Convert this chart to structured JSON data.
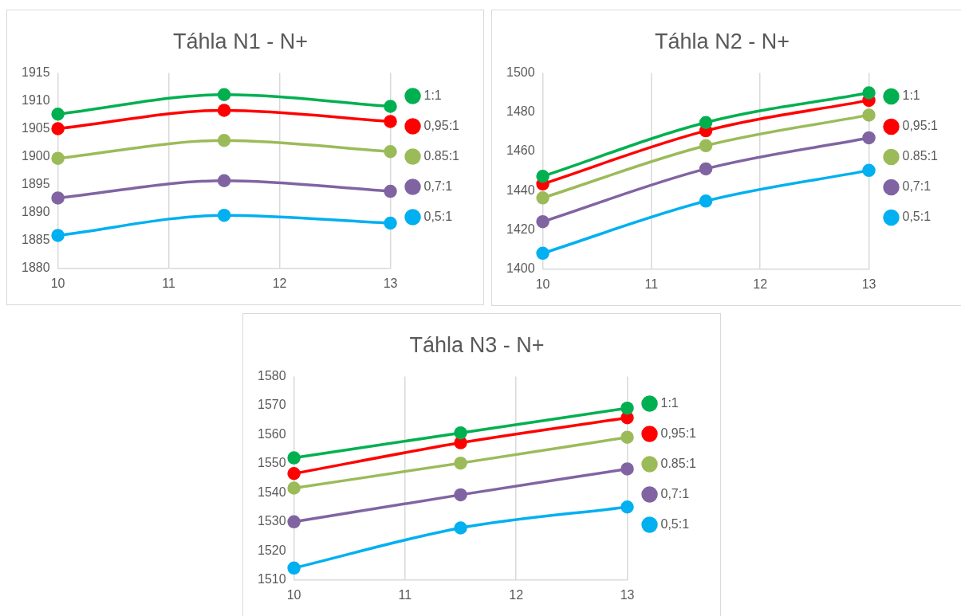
{
  "chart_data": [
    {
      "type": "line",
      "title": "Táhla N1 - N+",
      "x": [
        10,
        11.5,
        13
      ],
      "xlim": [
        10,
        13
      ],
      "xticks": [
        10,
        11,
        12,
        13
      ],
      "ylim": [
        1880,
        1915
      ],
      "yticks": [
        1880,
        1885,
        1890,
        1895,
        1900,
        1905,
        1910,
        1915
      ],
      "grid": "x",
      "legend": "right",
      "marker": "circle",
      "line_style": "solid",
      "series": [
        {
          "name": "1:1",
          "color": "#00b050",
          "values": [
            1907.6,
            1911.1,
            1909.0
          ]
        },
        {
          "name": "0,95:1",
          "color": "#ff0000",
          "values": [
            1905.0,
            1908.3,
            1906.3
          ]
        },
        {
          "name": "0.85:1",
          "color": "#9bbb59",
          "values": [
            1899.7,
            1902.9,
            1900.9
          ]
        },
        {
          "name": "0,7:1",
          "color": "#8064a2",
          "values": [
            1892.6,
            1895.7,
            1893.8
          ]
        },
        {
          "name": "0,5:1",
          "color": "#00b0f0",
          "values": [
            1885.9,
            1889.5,
            1888.1
          ]
        }
      ]
    },
    {
      "type": "line",
      "title": "Táhla N2 - N+",
      "x": [
        10,
        11.5,
        13
      ],
      "xlim": [
        10,
        13
      ],
      "xticks": [
        10,
        11,
        12,
        13
      ],
      "ylim": [
        1400,
        1500
      ],
      "yticks": [
        1400,
        1420,
        1440,
        1460,
        1480,
        1500
      ],
      "grid": "x",
      "legend": "right",
      "marker": "circle",
      "line_style": "solid",
      "series": [
        {
          "name": "1:1",
          "color": "#00b050",
          "values": [
            1447.3,
            1474.7,
            1489.8
          ]
        },
        {
          "name": "0,95:1",
          "color": "#ff0000",
          "values": [
            1443.4,
            1470.5,
            1486.0
          ]
        },
        {
          "name": "0.85:1",
          "color": "#9bbb59",
          "values": [
            1436.3,
            1462.9,
            1478.5
          ]
        },
        {
          "name": "0,7:1",
          "color": "#8064a2",
          "values": [
            1424.2,
            1451.1,
            1466.9
          ]
        },
        {
          "name": "0,5:1",
          "color": "#00b0f0",
          "values": [
            1408.1,
            1434.7,
            1450.3
          ]
        }
      ]
    },
    {
      "type": "line",
      "title": "Táhla N3 - N+",
      "x": [
        10,
        11.5,
        13
      ],
      "xlim": [
        10,
        13
      ],
      "xticks": [
        10,
        11,
        12,
        13
      ],
      "ylim": [
        1510,
        1580
      ],
      "yticks": [
        1510,
        1520,
        1530,
        1540,
        1550,
        1560,
        1570,
        1580
      ],
      "grid": "x",
      "legend": "right",
      "marker": "circle",
      "line_style": "solid",
      "series": [
        {
          "name": "1:1",
          "color": "#00b050",
          "values": [
            1552.0,
            1560.6,
            1569.1
          ]
        },
        {
          "name": "0,95:1",
          "color": "#ff0000",
          "values": [
            1546.6,
            1557.2,
            1565.8
          ]
        },
        {
          "name": "0.85:1",
          "color": "#9bbb59",
          "values": [
            1541.6,
            1550.2,
            1559.1
          ]
        },
        {
          "name": "0,7:1",
          "color": "#8064a2",
          "values": [
            1530.0,
            1539.3,
            1548.2
          ]
        },
        {
          "name": "0,5:1",
          "color": "#00b0f0",
          "values": [
            1514.1,
            1527.9,
            1535.1
          ]
        }
      ]
    }
  ]
}
